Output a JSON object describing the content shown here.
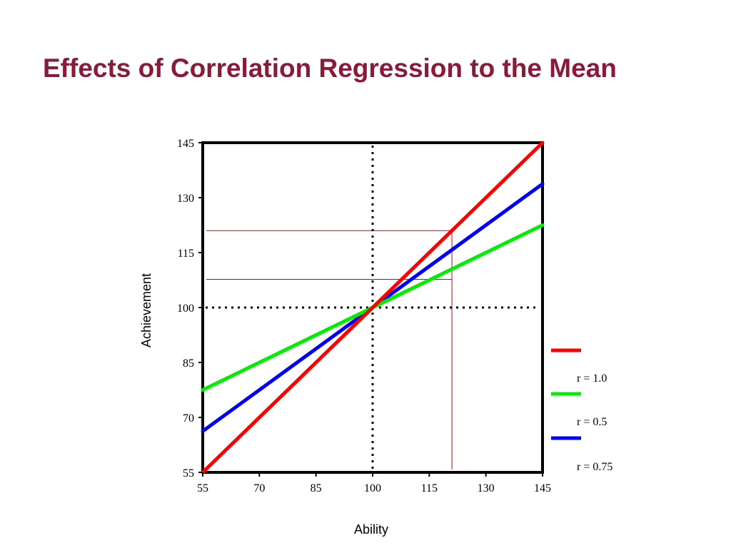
{
  "slide": {
    "title": "Effects of Correlation Regression to the Mean"
  },
  "chart_data": {
    "type": "line",
    "title": "",
    "xlabel": "Ability",
    "ylabel": "Achievement",
    "xlim": [
      55,
      145
    ],
    "ylim": [
      55,
      145
    ],
    "xticks": [
      "55",
      "70",
      "85",
      "100",
      "115",
      "130",
      "145"
    ],
    "yticks": [
      "55",
      "70",
      "85",
      "100",
      "115",
      "130",
      "145"
    ],
    "grid": false,
    "legend_position": "right-bottom",
    "mean_lines": {
      "x": 100,
      "y": 100,
      "style": "dotted"
    },
    "series": [
      {
        "name": "r = 1.0",
        "color": "#ff0000",
        "x": [
          55,
          145
        ],
        "y": [
          55,
          145
        ]
      },
      {
        "name": "r = 0.5",
        "color": "#00ee00",
        "x": [
          55,
          145
        ],
        "y": [
          77.5,
          122.5
        ]
      },
      {
        "name": "r = 0.75",
        "color": "#0000ff",
        "x": [
          55,
          145
        ],
        "y": [
          66.25,
          133.75
        ]
      }
    ],
    "annotations": {
      "x_value": 121,
      "y_values": [
        121,
        107.7
      ],
      "color": "#cc0000"
    }
  }
}
